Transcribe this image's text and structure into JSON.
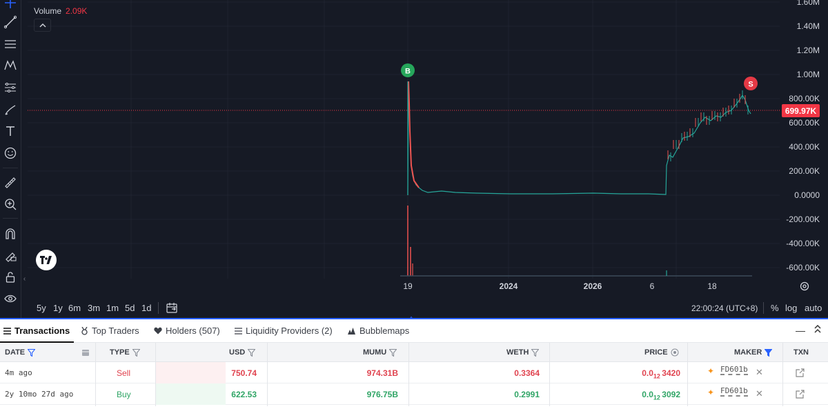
{
  "chart": {
    "legend": {
      "label": "Volume",
      "value": "2.09K"
    },
    "toggle_icon": "chevron-up-icon",
    "price_axis": [
      "1.60M",
      "1.40M",
      "1.20M",
      "1.00M",
      "800.00K",
      "600.00K",
      "400.00K",
      "200.00K",
      "0.0000",
      "-200.00K",
      "-400.00K",
      "-600.00K"
    ],
    "last_price": "699.97K",
    "markers": {
      "buy": "B",
      "sell": "S"
    },
    "time_axis": [
      {
        "label": "19",
        "bold": false
      },
      {
        "label": "2024",
        "bold": true
      },
      {
        "label": "2026",
        "bold": true
      },
      {
        "label": "6",
        "bold": false
      },
      {
        "label": "18",
        "bold": false
      }
    ],
    "ranges": [
      "5y",
      "1y",
      "6m",
      "3m",
      "1m",
      "5d",
      "1d"
    ],
    "clock": "22:00:24 (UTC+8)",
    "scale": {
      "percent": "%",
      "log": "log",
      "auto": "auto"
    },
    "colors": {
      "background": "#161a25",
      "up": "#26a69a",
      "down": "#ef5350",
      "price_line": "#f23645",
      "buy": "#26a65b",
      "sell": "#e53945"
    }
  },
  "tabs": {
    "transactions": "Transactions",
    "top_traders": "Top Traders",
    "holders": "Holders (507)",
    "liquidity": "Liquidity Providers (2)",
    "bubblemaps": "Bubblemaps"
  },
  "table": {
    "headers": {
      "date": "DATE",
      "type": "TYPE",
      "usd": "USD",
      "mumu": "MUMU",
      "weth": "WETH",
      "price": "PRICE",
      "maker": "MAKER",
      "txn": "TXN"
    },
    "rows": [
      {
        "date": "4m ago",
        "type": "Sell",
        "usd": "750.74",
        "mumu": "974.31B",
        "weth": "0.3364",
        "price_pre": "0.0",
        "price_sub": "12",
        "price_post": "3420",
        "maker": "FD601b"
      },
      {
        "date": "2y 10mo 27d ago",
        "type": "Buy",
        "usd": "622.53",
        "mumu": "976.75B",
        "weth": "0.2991",
        "price_pre": "0.0",
        "price_sub": "12",
        "price_post": "3092",
        "maker": "FD601b"
      }
    ]
  }
}
